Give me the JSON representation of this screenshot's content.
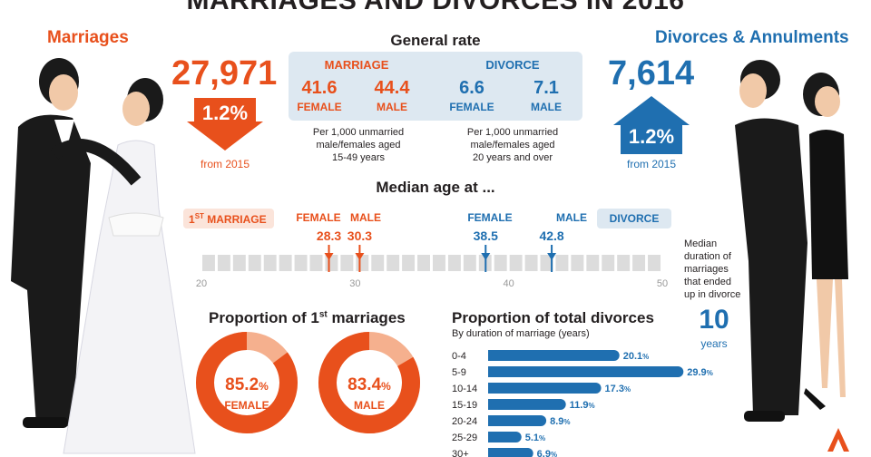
{
  "title": "MARRIAGES AND DIVORCES IN 2016",
  "marriages": {
    "heading": "Marriages",
    "count": "27,971",
    "change": "1.2%",
    "from": "from 2015"
  },
  "divorces": {
    "heading": "Divorces & Annulments",
    "count": "7,614",
    "change": "1.2%",
    "from": "from 2015"
  },
  "general_rate": {
    "heading": "General rate",
    "marriage_label": "MARRIAGE",
    "divorce_label": "DIVORCE",
    "marriage_female": "41.6",
    "marriage_male": "44.4",
    "divorce_female": "6.6",
    "divorce_male": "7.1",
    "female": "FEMALE",
    "male": "MALE",
    "marriage_note": [
      "Per 1,000 unmarried",
      "male/females aged",
      "15-49 years"
    ],
    "divorce_note": [
      "Per 1,000 unmarried",
      "male/females aged",
      "20 years and over"
    ]
  },
  "median_age": {
    "heading": "Median age at ...",
    "first_marriage_label_main": "1",
    "first_marriage_label_sup": "ST",
    "first_marriage_label_rest": " MARRIAGE",
    "divorce_label": "DIVORCE",
    "female": "FEMALE",
    "male": "MALE",
    "marriage_female": 28.3,
    "marriage_male": 30.3,
    "divorce_female": 38.5,
    "divorce_male": 42.8,
    "marriage_female_text": "28.3",
    "marriage_male_text": "30.3",
    "divorce_female_text": "38.5",
    "divorce_male_text": "42.8",
    "axis_ticks": [
      "20",
      "30",
      "40",
      "50"
    ],
    "axis_range": [
      20,
      50
    ]
  },
  "duration": {
    "lines": [
      "Median",
      "duration of",
      "marriages",
      "that ended",
      "up in divorce"
    ],
    "value": "10",
    "unit": "years"
  },
  "proportion_first": {
    "heading_main": "Proportion of 1",
    "heading_sup": "st",
    "heading_rest": " marriages",
    "female_value": "85.2",
    "male_value": "83.4",
    "percent": "%",
    "female": "FEMALE",
    "male": "MALE"
  },
  "proportion_divorces": {
    "heading": "Proportion of total divorces",
    "subheading": "By duration of marriage (years)"
  },
  "colors": {
    "orange": "#e8501c",
    "light_orange": "#f5b08e",
    "blue": "#1f6fb0",
    "light_blue": "#dde8f1"
  },
  "chart_data": [
    {
      "type": "pie",
      "title": "Proportion of 1st marriages",
      "series": [
        {
          "name": "FEMALE",
          "values": [
            85.2,
            14.8
          ]
        },
        {
          "name": "MALE",
          "values": [
            83.4,
            16.6
          ]
        }
      ]
    },
    {
      "type": "bar",
      "title": "Proportion of total divorces",
      "subtitle": "By duration of marriage (years)",
      "categories": [
        "0-4",
        "5-9",
        "10-14",
        "15-19",
        "20-24",
        "25-29",
        "30+"
      ],
      "values": [
        20.1,
        29.9,
        17.3,
        11.9,
        8.9,
        5.1,
        6.9
      ],
      "labels": [
        "20.1",
        "29.9",
        "17.3",
        "11.9",
        "8.9",
        "5.1",
        "6.9"
      ],
      "unit": "%"
    }
  ]
}
